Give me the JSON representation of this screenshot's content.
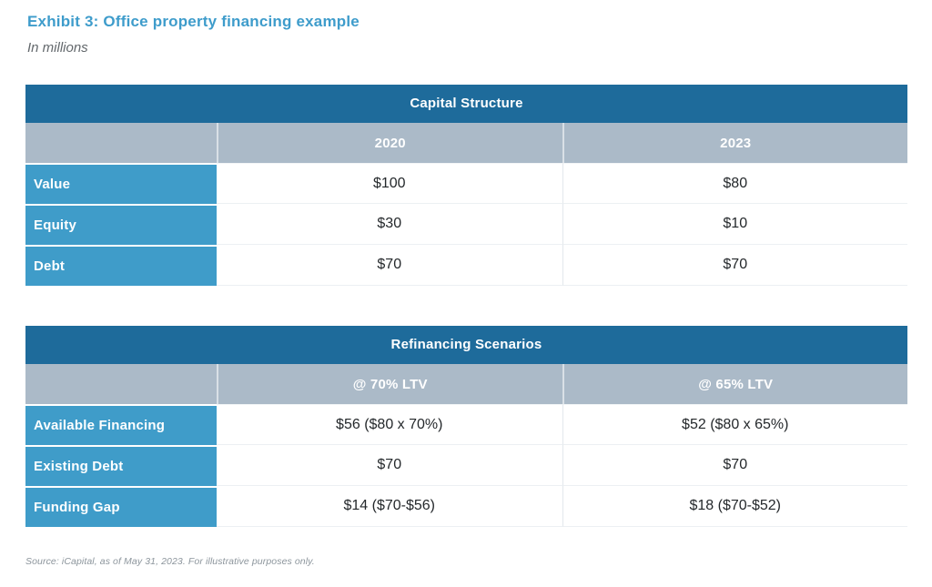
{
  "page": {
    "title": "Exhibit 3: Office property financing example",
    "subtitle": "In millions",
    "source": "Source: iCapital, as of May 31, 2023. For illustrative purposes only."
  },
  "colors": {
    "title_blue": "#3E9CCB",
    "header_dark_blue": "#1E6B9B",
    "subheader_gray_blue": "#ABBAC8",
    "label_blue": "#3F9CC9",
    "value_text": "#24282B",
    "source_gray": "#8C959C"
  },
  "tables": {
    "capital": {
      "title": "Capital Structure",
      "columns": [
        "",
        "2020",
        "2023"
      ],
      "rows": [
        {
          "label": "Value",
          "values": [
            "$100",
            "$80"
          ]
        },
        {
          "label": "Equity",
          "values": [
            "$30",
            "$10"
          ]
        },
        {
          "label": "Debt",
          "values": [
            "$70",
            "$70"
          ]
        }
      ]
    },
    "refinancing": {
      "title": "Refinancing Scenarios",
      "columns": [
        "",
        "@ 70% LTV",
        "@ 65% LTV"
      ],
      "rows": [
        {
          "label": "Available Financing",
          "values": [
            "$56 ($80 x 70%)",
            "$52 ($80 x 65%)"
          ]
        },
        {
          "label": "Existing Debt",
          "values": [
            "$70",
            "$70"
          ]
        },
        {
          "label": "Funding Gap",
          "values": [
            "$14 ($70-$56)",
            "$18 ($70-$52)"
          ]
        }
      ]
    }
  },
  "chart_data": [
    {
      "type": "table",
      "title": "Capital Structure",
      "categories": [
        "2020",
        "2023"
      ],
      "series": [
        {
          "name": "Value",
          "values": [
            100,
            80
          ]
        },
        {
          "name": "Equity",
          "values": [
            30,
            10
          ]
        },
        {
          "name": "Debt",
          "values": [
            70,
            70
          ]
        }
      ]
    },
    {
      "type": "table",
      "title": "Refinancing Scenarios",
      "categories": [
        "@ 70% LTV",
        "@ 65% LTV"
      ],
      "series": [
        {
          "name": "Available Financing",
          "values": [
            56,
            52
          ]
        },
        {
          "name": "Existing Debt",
          "values": [
            70,
            70
          ]
        },
        {
          "name": "Funding Gap",
          "values": [
            14,
            18
          ]
        }
      ]
    }
  ]
}
